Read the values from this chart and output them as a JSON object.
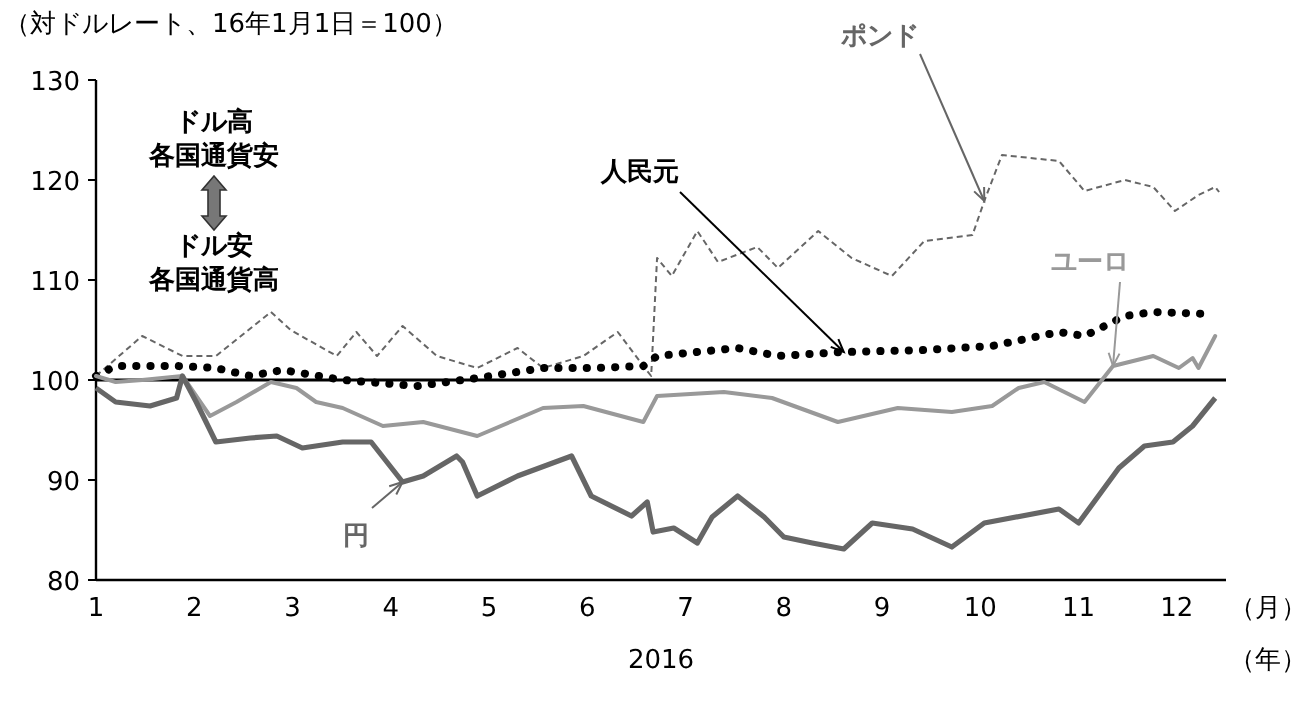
{
  "chart_data": {
    "type": "line",
    "title": "（対ドルレート、16年1月1日＝100）",
    "xlabel": "2016",
    "xlim": [
      1,
      12.5
    ],
    "xticks": [
      1,
      2,
      3,
      4,
      5,
      6,
      7,
      8,
      9,
      10,
      11,
      12
    ],
    "ylim": [
      80,
      130
    ],
    "yticks": [
      80,
      90,
      100,
      110,
      120,
      130
    ],
    "ref_lines": [
      {
        "axis": "y",
        "value": 100,
        "color": "#000000"
      }
    ],
    "annotations": [
      "ドル高",
      "各国通貨安",
      "ドル安",
      "各国通貨高",
      "（月）",
      "（年）"
    ],
    "series": [
      {
        "name": "ポンド",
        "color": "#666666",
        "line_style": "dashed",
        "x": [
          1.0,
          1.47,
          1.88,
          2.22,
          2.78,
          2.98,
          3.45,
          3.65,
          3.86,
          4.12,
          4.47,
          4.88,
          5.29,
          5.55,
          5.96,
          6.31,
          6.57,
          6.65,
          6.71,
          6.86,
          7.12,
          7.33,
          7.73,
          7.94,
          8.35,
          8.69,
          9.1,
          9.43,
          9.92,
          10.04,
          10.22,
          10.8,
          11.06,
          11.47,
          11.76,
          11.98,
          12.22,
          12.39,
          12.43
        ],
        "values": [
          100.4,
          104.4,
          102.4,
          102.4,
          106.8,
          105,
          102.4,
          104.8,
          102.4,
          105.4,
          102.4,
          101.2,
          103.2,
          101.2,
          102.4,
          104.8,
          101.4,
          100.4,
          112.2,
          110.4,
          114.9,
          111.8,
          113.3,
          111.2,
          114.9,
          112.2,
          110.4,
          113.9,
          114.5,
          117.9,
          122.5,
          121.9,
          118.9,
          120,
          119.3,
          116.9,
          118.5,
          119.3,
          118.8
        ]
      },
      {
        "name": "人民元",
        "color": "#000000",
        "line_style": "dotted",
        "x": [
          1.0,
          1.2,
          1.82,
          2.22,
          2.57,
          2.9,
          3.51,
          4.27,
          4.88,
          5.55,
          6.1,
          6.57,
          6.71,
          7.53,
          7.94,
          8.61,
          9.43,
          10.12,
          10.8,
          11.06,
          11.47,
          11.76,
          12.33
        ],
        "values": [
          100.4,
          101.4,
          101.4,
          101.2,
          100.4,
          101,
          100,
          99.4,
          100.2,
          101.2,
          101.2,
          101.4,
          102.4,
          103.2,
          102.4,
          102.8,
          103,
          103.4,
          104.8,
          104.4,
          106.4,
          106.8,
          106.6
        ]
      },
      {
        "name": "ユーロ",
        "color": "#999999",
        "line_style": "solid",
        "x": [
          1.0,
          1.2,
          1.47,
          1.88,
          2.16,
          2.43,
          2.78,
          3.04,
          3.24,
          3.51,
          3.92,
          4.33,
          4.88,
          5.55,
          5.96,
          6.57,
          6.71,
          7.39,
          7.88,
          8.55,
          9.16,
          9.71,
          10.12,
          10.39,
          10.65,
          11.06,
          11.35,
          11.76,
          12.02,
          12.16,
          12.22,
          12.39
        ],
        "values": [
          100.4,
          99.8,
          100,
          100.4,
          96.4,
          97.8,
          99.8,
          99.2,
          97.8,
          97.2,
          95.4,
          95.8,
          94.4,
          97.2,
          97.4,
          95.8,
          98.4,
          98.8,
          98.2,
          95.8,
          97.2,
          96.8,
          97.4,
          99.2,
          99.8,
          97.8,
          101.4,
          102.4,
          101.2,
          102.2,
          101.2,
          104.4
        ]
      },
      {
        "name": "円",
        "color": "#666666",
        "line_style": "solid",
        "x": [
          1.0,
          1.2,
          1.55,
          1.82,
          1.88,
          2.02,
          2.22,
          2.57,
          2.84,
          3.1,
          3.51,
          3.8,
          4.12,
          4.33,
          4.67,
          4.73,
          4.88,
          5.29,
          5.84,
          6.04,
          6.45,
          6.61,
          6.67,
          6.88,
          7.12,
          7.27,
          7.53,
          7.8,
          8.0,
          8.29,
          8.61,
          8.9,
          9.31,
          9.71,
          10.04,
          10.8,
          11.0,
          11.41,
          11.67,
          11.96,
          12.16,
          12.39
        ],
        "values": [
          99.2,
          97.8,
          97.4,
          98.2,
          100.4,
          97.8,
          93.8,
          94.2,
          94.4,
          93.2,
          93.8,
          93.8,
          89.8,
          90.4,
          92.4,
          91.8,
          88.4,
          90.4,
          92.4,
          88.4,
          86.4,
          87.8,
          84.8,
          85.2,
          83.7,
          86.3,
          88.4,
          86.3,
          84.3,
          83.7,
          83.1,
          85.7,
          85.1,
          83.3,
          85.7,
          87.1,
          85.7,
          91.2,
          93.4,
          93.8,
          95.4,
          98.2
        ]
      }
    ]
  }
}
